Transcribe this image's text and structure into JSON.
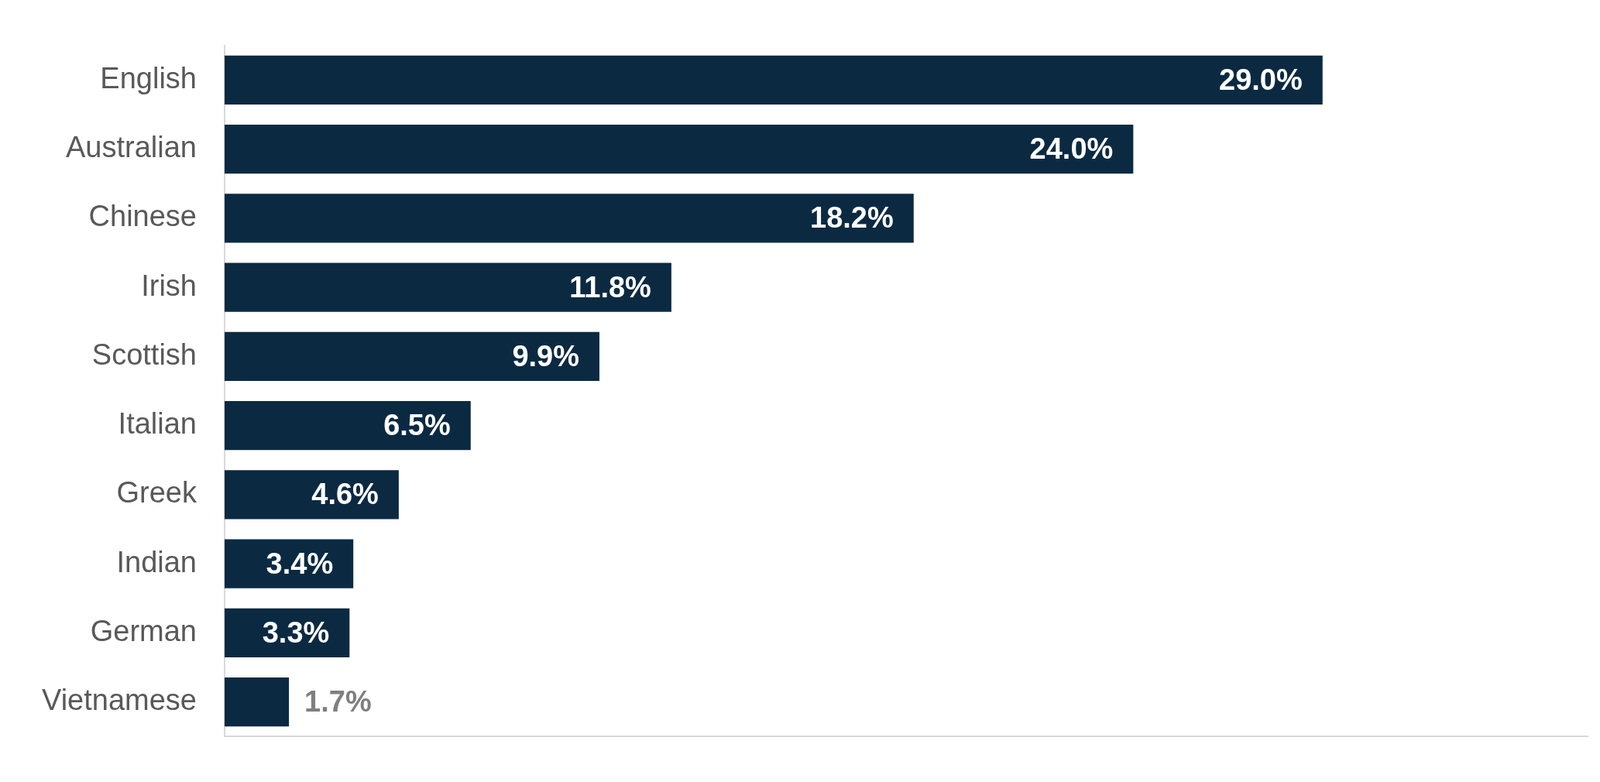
{
  "chart_data": {
    "type": "bar",
    "orientation": "horizontal",
    "categories": [
      "English",
      "Australian",
      "Chinese",
      "Irish",
      "Scottish",
      "Italian",
      "Greek",
      "Indian",
      "German",
      "Vietnamese"
    ],
    "values": [
      29.0,
      24.0,
      18.2,
      11.8,
      9.9,
      6.5,
      4.6,
      3.4,
      3.3,
      1.7
    ],
    "value_labels": [
      "29.0%",
      "24.0%",
      "18.2%",
      "11.8%",
      "9.9%",
      "6.5%",
      "4.6%",
      "3.4%",
      "3.3%",
      "1.7%"
    ],
    "color": "#0b2a42",
    "xlim": [
      0,
      36
    ],
    "grid": false,
    "data_labels": true,
    "tick_labels": "y"
  }
}
